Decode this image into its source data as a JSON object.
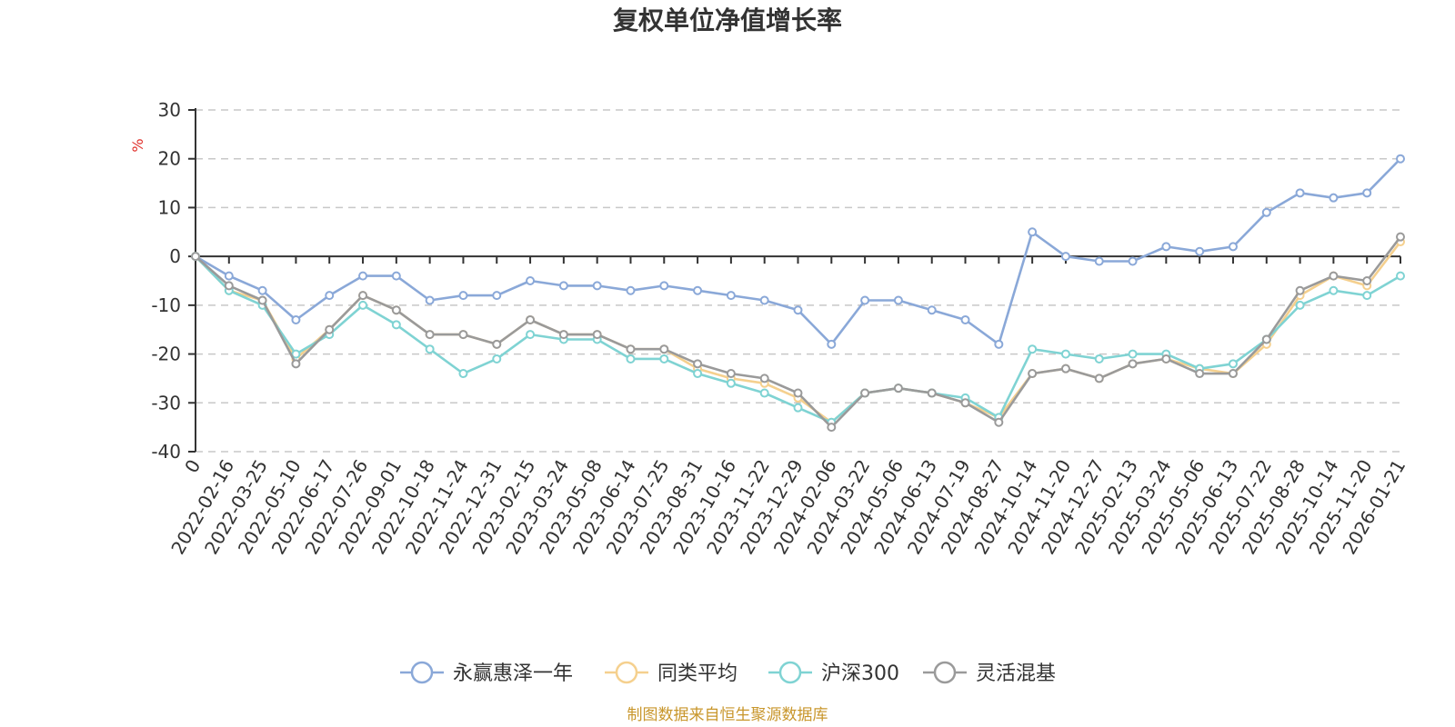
{
  "chart_data": {
    "type": "line",
    "title": "复权单位净值增长率",
    "ylabel": "%",
    "ylim": [
      -40,
      30
    ],
    "yticks": [
      "30",
      "20",
      "10",
      "0",
      "-10",
      "-20",
      "-30",
      "-40"
    ],
    "grid": true,
    "legend_position": "bottom",
    "categories": [
      "0",
      "2022-02-16",
      "2022-03-25",
      "2022-05-10",
      "2022-06-17",
      "2022-07-26",
      "2022-09-01",
      "2022-10-18",
      "2022-11-24",
      "2022-12-31",
      "2023-02-15",
      "2023-03-24",
      "2023-05-08",
      "2023-06-14",
      "2023-07-25",
      "2023-08-31",
      "2023-10-16",
      "2023-11-22",
      "2023-12-29",
      "2024-02-06",
      "2024-03-22",
      "2024-05-06",
      "2024-06-13",
      "2024-07-19",
      "2024-08-27",
      "2024-10-14",
      "2024-11-20",
      "2024-12-27",
      "2025-02-13",
      "2025-03-24",
      "2025-05-06",
      "2025-06-13",
      "2025-07-22",
      "2025-08-28",
      "2025-10-14",
      "2025-11-20",
      "2026-01-21"
    ],
    "series": [
      {
        "name": "永赢惠泽一年",
        "color": "#8aa8d8",
        "values": [
          0,
          -4,
          -7,
          -13,
          -8,
          -4,
          -4,
          -9,
          -8,
          -8,
          -5,
          -6,
          -6,
          -7,
          -6,
          -7,
          -8,
          -9,
          -11,
          -18,
          -9,
          -9,
          -11,
          -13,
          -18,
          5,
          0,
          -1,
          -1,
          2,
          1,
          2,
          9,
          13,
          12,
          13,
          20
        ]
      },
      {
        "name": "同类平均",
        "color": "#f5d08e",
        "values": [
          0,
          -7,
          -9,
          -21,
          -15,
          -8,
          -11,
          -16,
          -16,
          -18,
          -13,
          -16,
          -16,
          -19,
          -19,
          -23,
          -25,
          -26,
          -29,
          -34,
          -28,
          -27,
          -28,
          -30,
          -33,
          -24,
          -23,
          -25,
          -22,
          -21,
          -23,
          -24,
          -18,
          -8,
          -4,
          -6,
          3
        ]
      },
      {
        "name": "沪深300",
        "color": "#7fd3d3",
        "values": [
          0,
          -7,
          -10,
          -20,
          -16,
          -10,
          -14,
          -19,
          -24,
          -21,
          -16,
          -17,
          -17,
          -21,
          -21,
          -24,
          -26,
          -28,
          -31,
          -34,
          -28,
          -27,
          -28,
          -29,
          -33,
          -19,
          -20,
          -21,
          -20,
          -20,
          -23,
          -22,
          -17,
          -10,
          -7,
          -8,
          -4
        ]
      },
      {
        "name": "灵活混基",
        "color": "#9a9a9a",
        "values": [
          0,
          -6,
          -9,
          -22,
          -15,
          -8,
          -11,
          -16,
          -16,
          -18,
          -13,
          -16,
          -16,
          -19,
          -19,
          -22,
          -24,
          -25,
          -28,
          -35,
          -28,
          -27,
          -28,
          -30,
          -34,
          -24,
          -23,
          -25,
          -22,
          -21,
          -24,
          -24,
          -17,
          -7,
          -4,
          -5,
          4
        ]
      }
    ]
  },
  "legend": {
    "items": [
      "永赢惠泽一年",
      "同类平均",
      "沪深300",
      "灵活混基"
    ]
  },
  "source_note": "制图数据来自恒生聚源数据库"
}
